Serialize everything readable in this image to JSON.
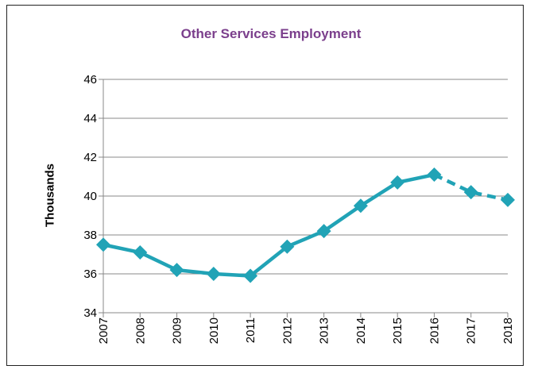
{
  "chart_data": {
    "type": "line",
    "title": "Other Services Employment",
    "xlabel": "",
    "ylabel": "Thousands",
    "categories": [
      "2007",
      "2008",
      "2009",
      "2010",
      "2011",
      "2012",
      "2013",
      "2014",
      "2015",
      "2016",
      "2017",
      "2018"
    ],
    "series": [
      {
        "values": [
          37.5,
          37.1,
          36.2,
          36.0,
          35.9,
          37.4,
          38.2,
          39.5,
          40.7,
          41.1,
          40.2,
          39.8
        ]
      }
    ],
    "actual_through": "2016",
    "projected_style": "dashed",
    "ylim": [
      34,
      46
    ],
    "yticks": [
      34,
      36,
      38,
      40,
      42,
      44,
      46
    ],
    "grid": true,
    "colors": {
      "series": "#21a3b6",
      "title": "#7b3f8c",
      "grid": "#888888"
    }
  }
}
